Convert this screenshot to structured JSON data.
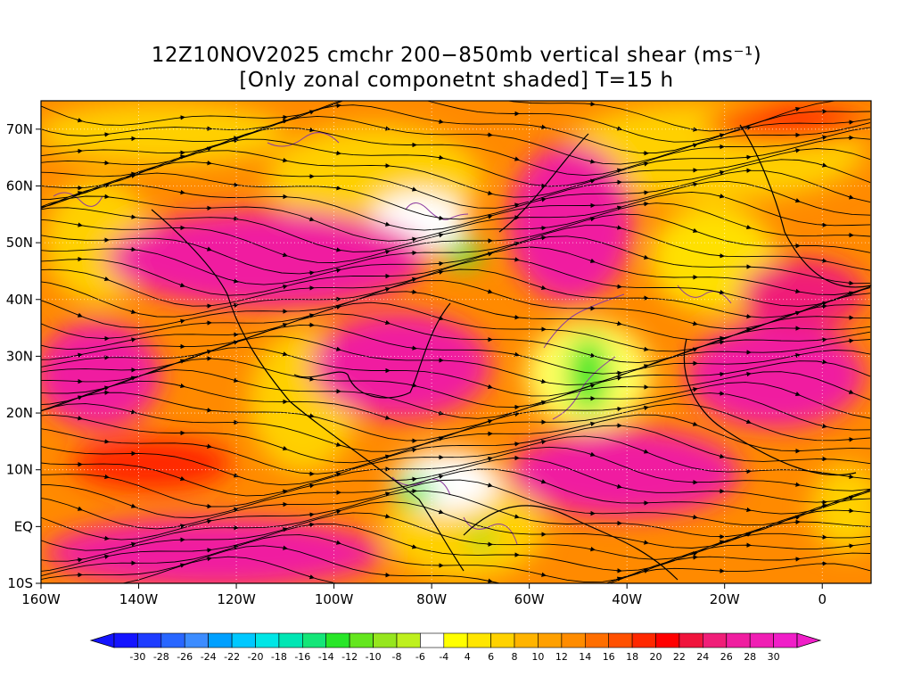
{
  "title": {
    "line1": "12Z10NOV2025 cmchr 200−850mb vertical shear (ms⁻¹)",
    "line2": "[Only zonal componetnt shaded] T=15 h"
  },
  "map": {
    "variable": "200-850mb vertical shear",
    "shading": "zonal component",
    "streamlines": true,
    "lat_labels": [
      "70N",
      "60N",
      "50N",
      "40N",
      "30N",
      "20N",
      "10N",
      "EQ",
      "10S"
    ],
    "lat_values": [
      70,
      60,
      50,
      40,
      30,
      20,
      10,
      0,
      -10
    ],
    "lon_labels": [
      "160W",
      "140W",
      "120W",
      "100W",
      "80W",
      "60W",
      "40W",
      "20W",
      "0"
    ],
    "lon_values": [
      -160,
      -140,
      -120,
      -100,
      -80,
      -60,
      -40,
      -20,
      0
    ],
    "lat_range": [
      -10,
      75
    ],
    "lon_range": [
      -160,
      10
    ]
  },
  "colorbar": {
    "labels": [
      "-30",
      "-28",
      "-26",
      "-24",
      "-22",
      "-20",
      "-18",
      "-16",
      "-14",
      "-12",
      "-10",
      "-8",
      "-6",
      "-4",
      "4",
      "6",
      "8",
      "10",
      "12",
      "14",
      "16",
      "18",
      "20",
      "22",
      "24",
      "26",
      "28",
      "30"
    ],
    "colors": [
      "#1414ff",
      "#1e3cff",
      "#2866ff",
      "#3c8cff",
      "#00a0ff",
      "#00c8ff",
      "#00e6e6",
      "#00e6b4",
      "#14e678",
      "#28e628",
      "#64e61e",
      "#96e61e",
      "#bef01e",
      "#ffffff",
      "#ffff00",
      "#ffe600",
      "#ffd200",
      "#ffb400",
      "#ffa000",
      "#ff8c00",
      "#ff6e00",
      "#ff5000",
      "#ff2800",
      "#ff0000",
      "#f0143c",
      "#f01e78",
      "#f01ea0",
      "#f01eb4",
      "#f01ec8"
    ]
  },
  "colors": {
    "high_shear": "#f01ea0",
    "moderate_shear": "#ff6e00",
    "low_shear": "#ffd200",
    "negative_shear": "#28e628",
    "contour": "#8c3ca0"
  }
}
